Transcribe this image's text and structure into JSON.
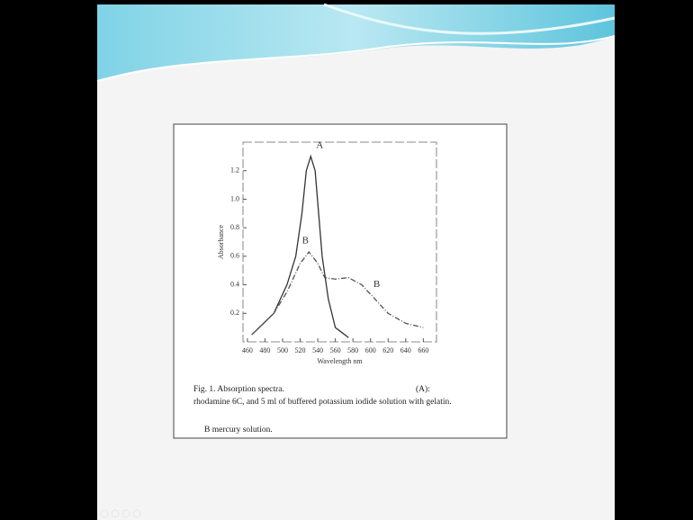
{
  "chart_data": {
    "type": "line",
    "caption": {
      "title": "Fig. 1. Absorption spectra.",
      "a_label": "(A):",
      "a_text": "rhodamine 6C, and 5 ml of buffered potassium iodide solution with gelatin.",
      "b_text": "B mercury solution."
    },
    "xlabel": "Wavelength nm",
    "ylabel": "Absorbance",
    "xlim": [
      455,
      675
    ],
    "xticks": [
      460,
      480,
      500,
      520,
      540,
      560,
      580,
      600,
      620,
      640,
      660
    ],
    "ylim": [
      0,
      1.4
    ],
    "yticks": [
      0.2,
      0.4,
      0.6,
      0.8,
      {
        "value": 1,
        "label": "1.0"
      },
      1.2
    ],
    "grid": false,
    "series": [
      {
        "name": "A",
        "color": "#333333",
        "x": [
          465,
          490,
          505,
          515,
          522,
          527,
          532,
          537,
          541,
          545,
          552,
          560,
          575
        ],
        "values": [
          0.05,
          0.2,
          0.4,
          0.6,
          0.9,
          1.2,
          1.3,
          1.2,
          0.9,
          0.6,
          0.3,
          0.1,
          0.03
        ]
      },
      {
        "name": "B",
        "color": "#555555",
        "x": [
          465,
          490,
          505,
          520,
          530,
          540,
          548,
          560,
          575,
          590,
          605,
          620,
          640,
          660
        ],
        "values": [
          0.05,
          0.2,
          0.35,
          0.55,
          0.63,
          0.55,
          0.45,
          0.44,
          0.45,
          0.4,
          0.3,
          0.2,
          0.13,
          0.1
        ]
      }
    ]
  }
}
